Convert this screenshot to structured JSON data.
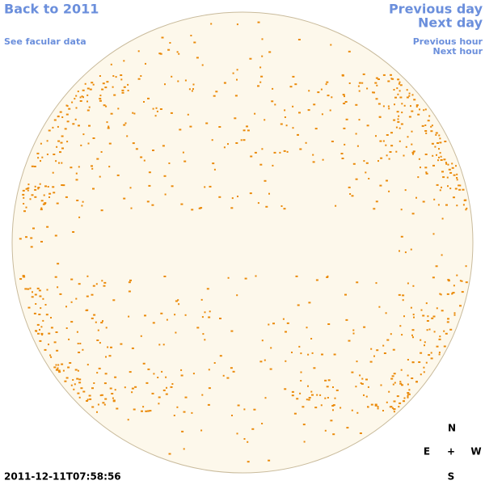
{
  "navigation": {
    "back": "Back to 2011",
    "facular_data": "See facular data",
    "previous_day": "Previous day",
    "next_day": "Next day",
    "previous_hour": "Previous hour",
    "next_hour": "Next hour"
  },
  "timestamp": "2011-12-11T07:58:56",
  "compass": {
    "north": "N",
    "east": "E",
    "center": "+",
    "west": "W",
    "south": "S"
  }
}
